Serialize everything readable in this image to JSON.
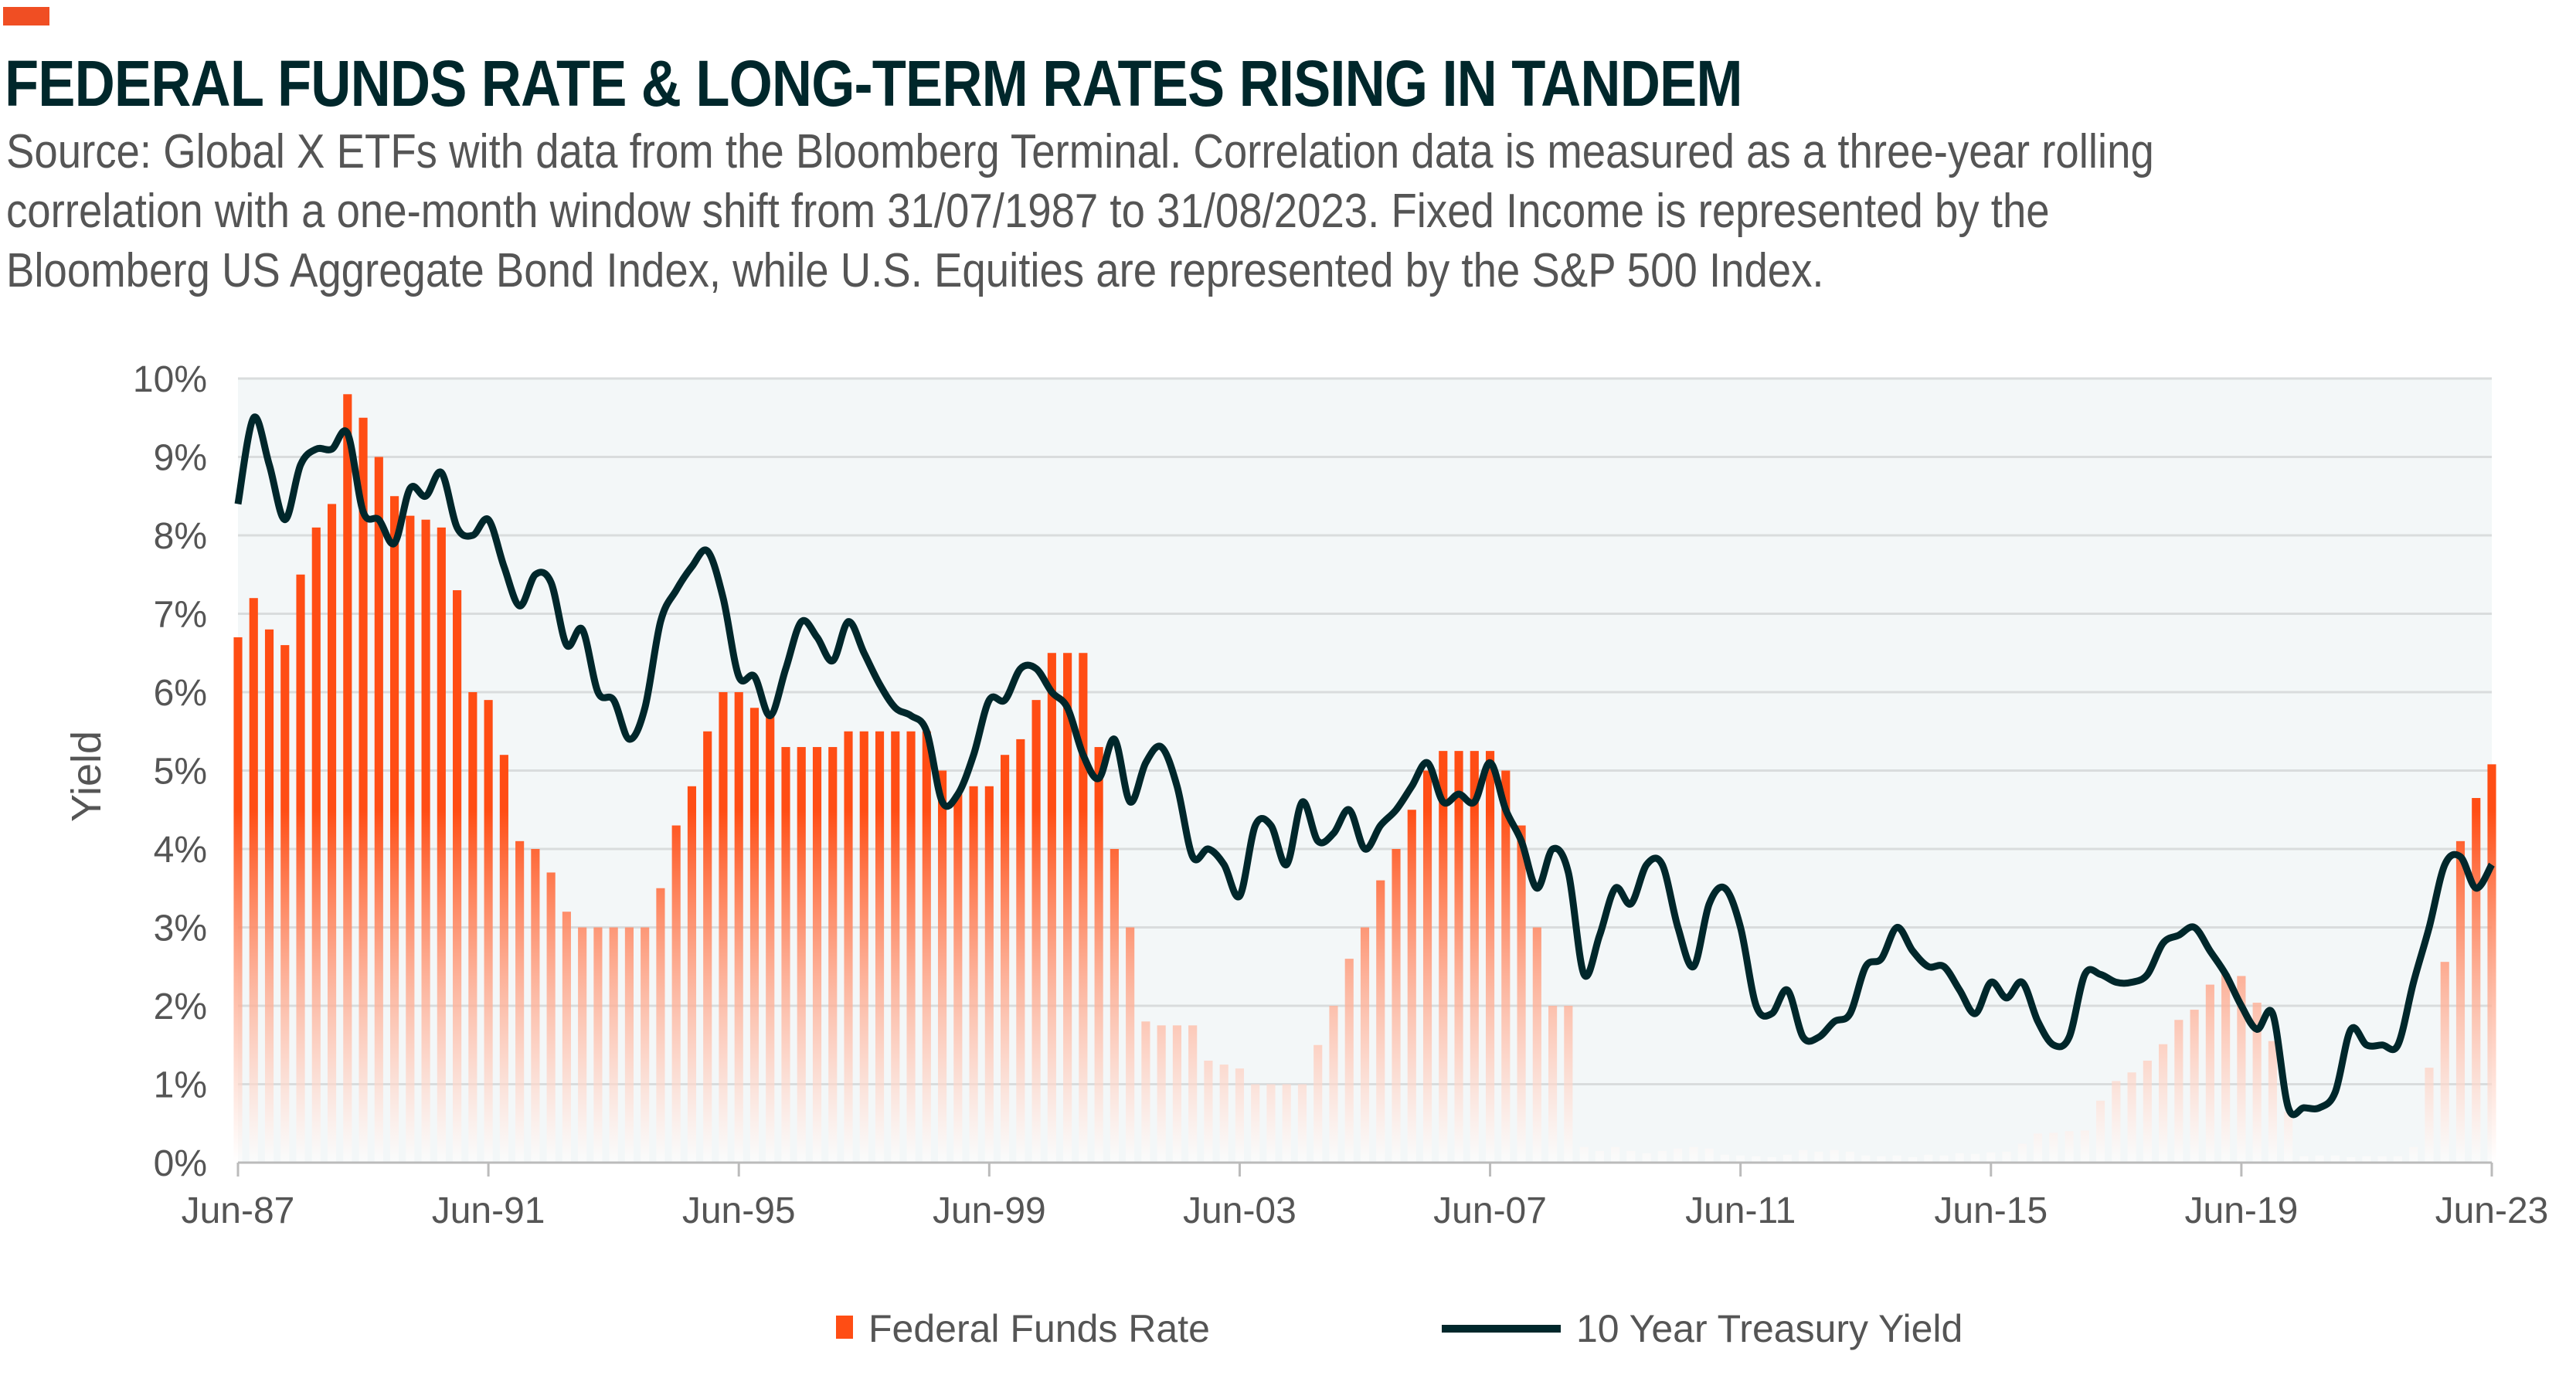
{
  "header": {
    "title": "FEDERAL FUNDS RATE & LONG-TERM RATES RISING IN TANDEM",
    "subtitle_lines": [
      "Source: Global X ETFs with data from the Bloomberg Terminal. Correlation data is measured as a three-year rolling",
      "correlation with a one-month window shift from 31/07/1987 to 31/08/2023. Fixed Income is represented by the",
      "Bloomberg US Aggregate Bond Index, while U.S. Equities are represented by the S&P 500 Index."
    ]
  },
  "colors": {
    "accent": "#f04e23",
    "bar": "#ff4d14",
    "line": "#00272b",
    "plot_bg": "#f3f7f8",
    "grid": "#d9dcdd"
  },
  "chart_data": {
    "type": "bar+line",
    "title": "FEDERAL FUNDS RATE & LONG-TERM RATES RISING IN TANDEM",
    "xlabel": "",
    "ylabel": "Yield",
    "ylim": [
      0,
      10
    ],
    "yticks": [
      "0%",
      "1%",
      "2%",
      "3%",
      "4%",
      "5%",
      "6%",
      "7%",
      "8%",
      "9%",
      "10%"
    ],
    "xticks": [
      "Jun-87",
      "Jun-91",
      "Jun-95",
      "Jun-99",
      "Jun-03",
      "Jun-07",
      "Jun-11",
      "Jun-15",
      "Jun-19",
      "Jun-23"
    ],
    "x_start": "Jun-87",
    "x_step": "quarterly",
    "grid": true,
    "legend_position": "bottom",
    "series": [
      {
        "name": "Federal Funds Rate",
        "type": "bar",
        "values": [
          6.7,
          7.2,
          6.8,
          6.6,
          7.5,
          8.1,
          8.4,
          9.8,
          9.5,
          9.0,
          8.5,
          8.25,
          8.2,
          8.1,
          7.3,
          6.0,
          5.9,
          5.2,
          4.1,
          4.0,
          3.7,
          3.2,
          3.0,
          3.0,
          3.0,
          3.0,
          3.0,
          3.5,
          4.3,
          4.8,
          5.5,
          6.0,
          6.0,
          5.8,
          5.7,
          5.3,
          5.3,
          5.3,
          5.3,
          5.5,
          5.5,
          5.5,
          5.5,
          5.5,
          5.5,
          5.0,
          4.7,
          4.8,
          4.8,
          5.2,
          5.4,
          5.9,
          6.5,
          6.5,
          6.5,
          5.3,
          4.0,
          3.0,
          1.8,
          1.75,
          1.75,
          1.75,
          1.3,
          1.25,
          1.2,
          1.0,
          1.0,
          1.0,
          1.0,
          1.5,
          2.0,
          2.6,
          3.0,
          3.6,
          4.0,
          4.5,
          5.0,
          5.25,
          5.25,
          5.25,
          5.25,
          5.0,
          4.3,
          3.0,
          2.0,
          2.0,
          0.2,
          0.15,
          0.2,
          0.15,
          0.12,
          0.15,
          0.18,
          0.2,
          0.18,
          0.1,
          0.09,
          0.08,
          0.07,
          0.1,
          0.16,
          0.14,
          0.16,
          0.14,
          0.09,
          0.08,
          0.09,
          0.07,
          0.1,
          0.09,
          0.12,
          0.11,
          0.13,
          0.14,
          0.24,
          0.37,
          0.38,
          0.4,
          0.41,
          0.79,
          1.04,
          1.15,
          1.3,
          1.51,
          1.82,
          1.95,
          2.27,
          2.41,
          2.38,
          2.04,
          1.55,
          0.65,
          0.08,
          0.09,
          0.09,
          0.07,
          0.08,
          0.08,
          0.08,
          0.2,
          1.21,
          2.56,
          4.1,
          4.65,
          5.08
        ]
      },
      {
        "name": "10 Year Treasury Yield",
        "type": "line",
        "values": [
          8.4,
          9.5,
          8.9,
          8.2,
          8.9,
          9.1,
          9.1,
          9.3,
          8.3,
          8.2,
          7.9,
          8.6,
          8.5,
          8.8,
          8.1,
          8.0,
          8.2,
          7.6,
          7.1,
          7.5,
          7.4,
          6.6,
          6.8,
          6.0,
          5.9,
          5.4,
          5.8,
          6.9,
          7.3,
          7.6,
          7.8,
          7.2,
          6.2,
          6.2,
          5.7,
          6.3,
          6.9,
          6.7,
          6.4,
          6.9,
          6.5,
          6.1,
          5.8,
          5.7,
          5.5,
          4.6,
          4.7,
          5.2,
          5.9,
          5.9,
          6.3,
          6.3,
          6.0,
          5.8,
          5.2,
          4.9,
          5.4,
          4.6,
          5.1,
          5.3,
          4.8,
          3.9,
          4.0,
          3.8,
          3.4,
          4.3,
          4.3,
          3.8,
          4.6,
          4.1,
          4.2,
          4.5,
          4.0,
          4.3,
          4.5,
          4.8,
          5.1,
          4.6,
          4.7,
          4.6,
          5.1,
          4.5,
          4.1,
          3.5,
          4.0,
          3.7,
          2.4,
          2.9,
          3.5,
          3.3,
          3.8,
          3.8,
          3.0,
          2.5,
          3.3,
          3.5,
          3.0,
          2.0,
          1.9,
          2.2,
          1.6,
          1.6,
          1.8,
          1.9,
          2.5,
          2.6,
          3.0,
          2.7,
          2.5,
          2.5,
          2.2,
          1.9,
          2.3,
          2.1,
          2.3,
          1.8,
          1.5,
          1.6,
          2.4,
          2.4,
          2.3,
          2.3,
          2.4,
          2.8,
          2.9,
          3.0,
          2.7,
          2.4,
          2.0,
          1.7,
          1.9,
          0.7,
          0.7,
          0.7,
          0.9,
          1.7,
          1.5,
          1.5,
          1.5,
          2.3,
          3.0,
          3.8,
          3.9,
          3.5,
          3.8
        ]
      }
    ]
  }
}
